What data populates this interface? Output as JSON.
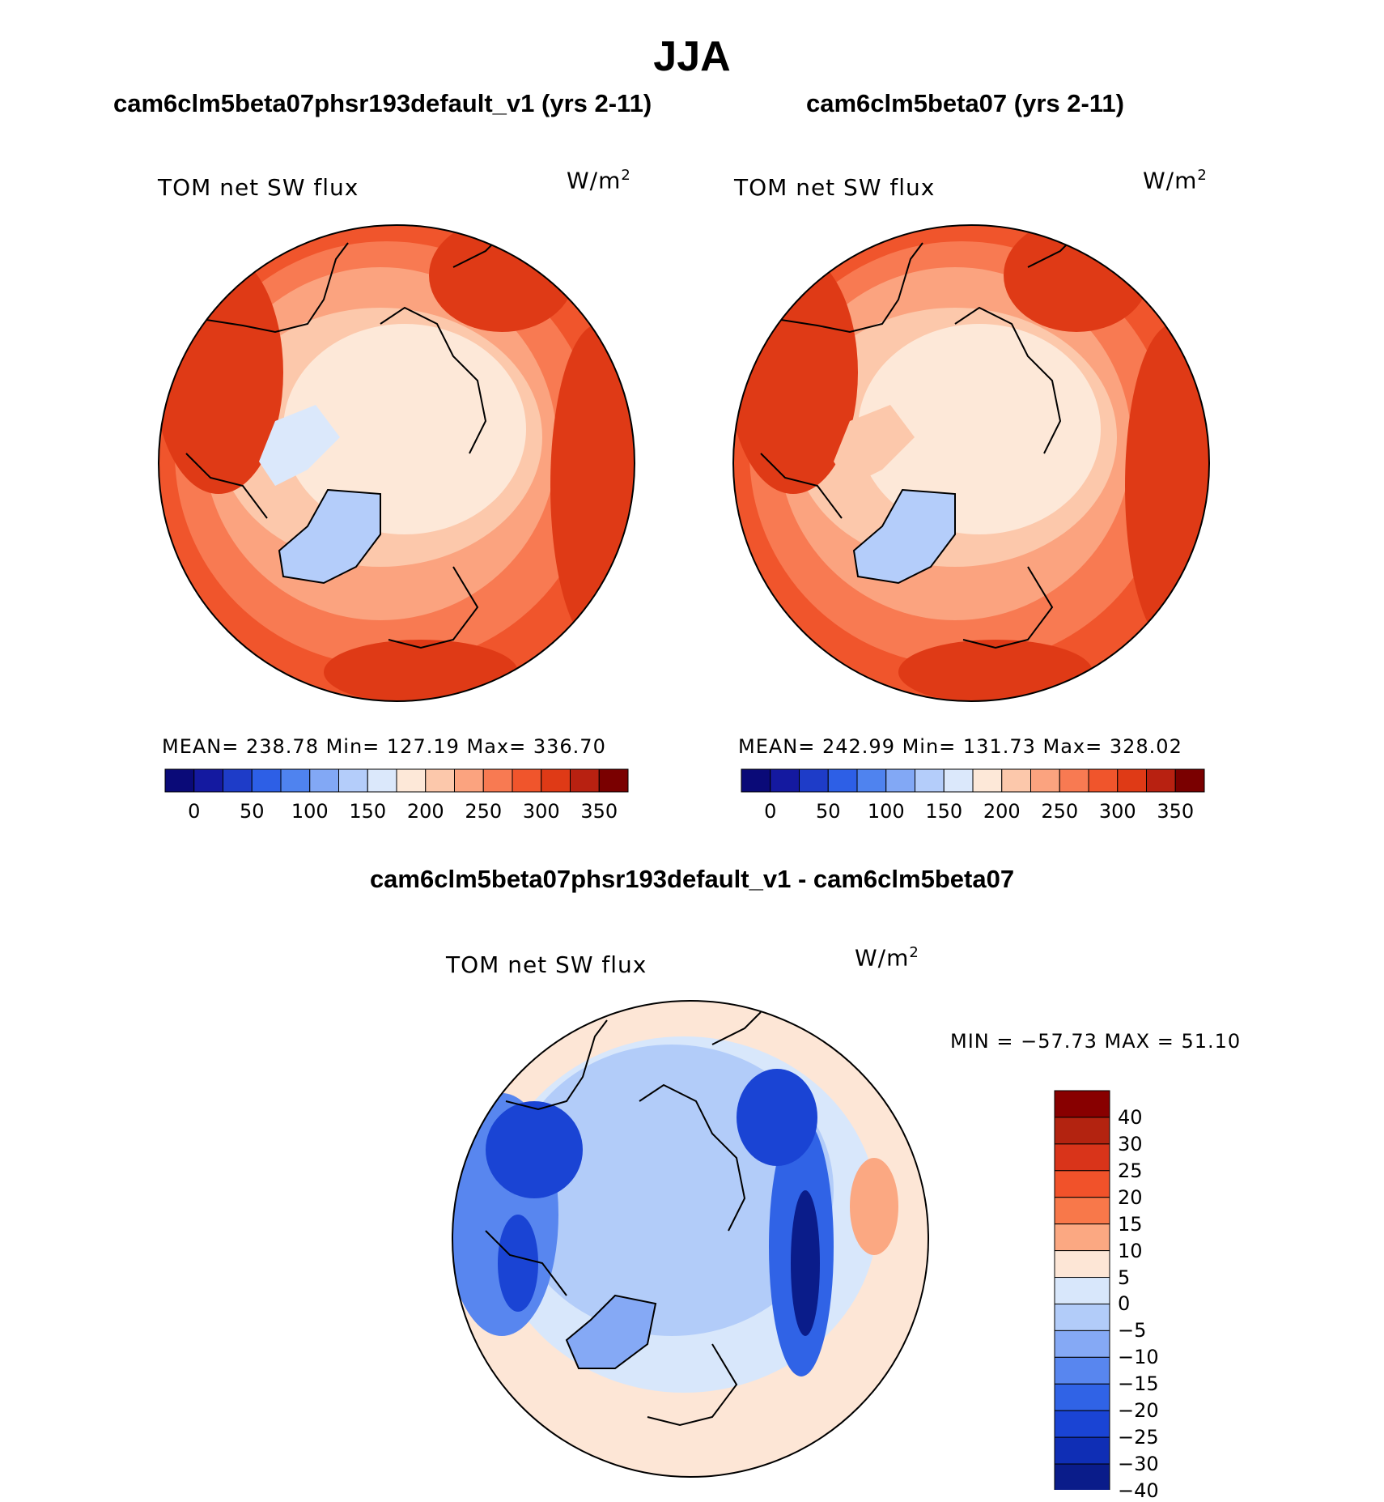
{
  "figure": {
    "title": "JJA",
    "diff_title": "cam6clm5beta07phsr193default_v1 - cam6clm5beta07"
  },
  "panels": [
    {
      "title": "cam6clm5beta07phsr193default_v1 (yrs 2-11)",
      "variable": "TOM net SW flux",
      "units_base": "W/m",
      "units_exp": "2",
      "stats": "MEAN= 238.78   Min= 127.19   Max= 336.70"
    },
    {
      "title": "cam6clm5beta07 (yrs 2-11)",
      "variable": "TOM net SW flux",
      "units_base": "W/m",
      "units_exp": "2",
      "stats": "MEAN= 242.99   Min= 131.73   Max= 328.02"
    }
  ],
  "diff_panel": {
    "variable": "TOM net SW flux",
    "units_base": "W/m",
    "units_exp": "2",
    "minmax": "MIN = −57.73 MAX =   51.10"
  },
  "colorbar_h": {
    "colors": [
      "#0a0a78",
      "#1419a0",
      "#1e3cc8",
      "#2d5fe6",
      "#4f83ef",
      "#82a8f5",
      "#b4cdfa",
      "#dbe8fb",
      "#fde8d8",
      "#fcc8ab",
      "#fba37f",
      "#f87a52",
      "#f0552c",
      "#df3a16",
      "#b82111",
      "#7a0000"
    ],
    "labels": [
      "0",
      "50",
      "100",
      "150",
      "200",
      "250",
      "300",
      "350"
    ]
  },
  "colorbar_v": {
    "colors": [
      "#880000",
      "#b32310",
      "#d9341a",
      "#f1522a",
      "#f8784a",
      "#fba882",
      "#fde6d6",
      "#d8e7fb",
      "#b2ccf9",
      "#85a9f5",
      "#5886ef",
      "#3063e6",
      "#1a44d4",
      "#0f2eb5",
      "#0a1c8a"
    ],
    "labels": [
      "40",
      "30",
      "25",
      "20",
      "15",
      "10",
      "5",
      "0",
      "−5",
      "−10",
      "−15",
      "−20",
      "−25",
      "−30",
      "−40"
    ]
  }
}
